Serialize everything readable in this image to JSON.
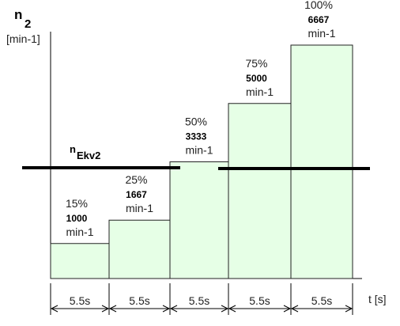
{
  "chart_data": {
    "type": "bar",
    "title": "",
    "y_axis": {
      "symbol": "n",
      "subscript": "2",
      "unit": "[min-1]"
    },
    "x_axis": {
      "label": "t [s]"
    },
    "bars": [
      {
        "percent": "15%",
        "speed": "1000",
        "unit": "min-1",
        "value": 1000,
        "duration": "5.5s"
      },
      {
        "percent": "25%",
        "speed": "1667",
        "unit": "min-1",
        "value": 1667,
        "duration": "5.5s"
      },
      {
        "percent": "50%",
        "speed": "3333",
        "unit": "min-1",
        "value": 3333,
        "duration": "5.5s"
      },
      {
        "percent": "75%",
        "speed": "5000",
        "unit": "min-1",
        "value": 5000,
        "duration": "5.5s"
      },
      {
        "percent": "100%",
        "speed": "6667",
        "unit": "min-1",
        "value": 6667,
        "duration": "5.5s"
      }
    ],
    "ekv_line": {
      "symbol": "n",
      "subscript": "Ekv2"
    },
    "bar_color": "#e6ffe6",
    "bar_edge": "#222222"
  }
}
